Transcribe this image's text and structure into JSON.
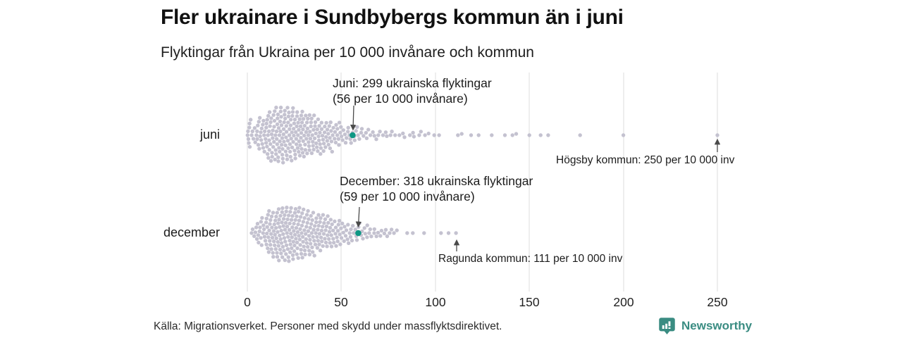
{
  "chart_data": {
    "type": "beeswarm",
    "title": "Fler ukrainare i Sundbybergs kommun än i juni",
    "subtitle": "Flyktingar från Ukraina per 10 000 invånare och kommun",
    "x_ticks": [
      "0",
      "50",
      "100",
      "150",
      "200",
      "250"
    ],
    "xlim": [
      0,
      260
    ],
    "grid": "vertical",
    "dot_color": "#c4c2d0",
    "highlight_color": "#0e9784",
    "rows": [
      {
        "label": "juni",
        "highlight_value": 56,
        "value_buckets": [
          [
            0,
            1.5,
            7
          ],
          [
            1.5,
            5,
            7
          ],
          [
            5,
            10,
            20
          ],
          [
            10,
            15,
            30
          ],
          [
            15,
            20,
            34
          ],
          [
            20,
            25,
            32
          ],
          [
            25,
            30,
            30
          ],
          [
            30,
            35,
            26
          ],
          [
            35,
            40,
            22
          ],
          [
            40,
            45,
            18
          ],
          [
            45,
            50,
            14
          ],
          [
            50,
            55,
            10
          ],
          [
            55,
            60,
            8
          ],
          [
            60,
            65,
            6
          ],
          [
            65,
            70,
            5
          ],
          [
            70,
            75,
            4
          ],
          [
            75,
            80,
            3
          ],
          [
            80,
            85,
            3
          ],
          [
            85,
            90,
            3
          ],
          [
            90,
            95,
            3
          ],
          [
            95,
            100,
            2
          ]
        ],
        "outliers": [
          102,
          112,
          114,
          119,
          123,
          130,
          137,
          141,
          143,
          150,
          156,
          160,
          177,
          200,
          250
        ]
      },
      {
        "label": "december",
        "highlight_value": 59,
        "value_buckets": [
          [
            2,
            5,
            5
          ],
          [
            5,
            10,
            16
          ],
          [
            10,
            15,
            28
          ],
          [
            15,
            20,
            34
          ],
          [
            20,
            25,
            34
          ],
          [
            25,
            30,
            32
          ],
          [
            30,
            35,
            28
          ],
          [
            35,
            40,
            24
          ],
          [
            40,
            45,
            20
          ],
          [
            45,
            50,
            16
          ],
          [
            50,
            55,
            12
          ],
          [
            55,
            60,
            10
          ],
          [
            60,
            65,
            8
          ],
          [
            65,
            70,
            6
          ],
          [
            70,
            75,
            5
          ],
          [
            75,
            80,
            4
          ]
        ],
        "outliers": [
          85,
          88,
          94,
          103,
          107,
          111
        ]
      }
    ],
    "annotations": [
      {
        "id": "juni-highlight",
        "lines": [
          "Juni: 299 ukrainska flyktingar",
          "(56 per 10 000 invånare)"
        ],
        "target_value": 56,
        "target_row": "juni"
      },
      {
        "id": "hogsby",
        "lines": [
          "Högsby kommun: 250 per 10 000 inv"
        ],
        "target_value": 250,
        "target_row": "juni"
      },
      {
        "id": "december-highlight",
        "lines": [
          "December: 318 ukrainska flyktingar",
          "(59 per 10 000 invånare)"
        ],
        "target_value": 59,
        "target_row": "december"
      },
      {
        "id": "ragunda",
        "lines": [
          "Ragunda kommun: 111 per 10 000 inv"
        ],
        "target_value": 111,
        "target_row": "december"
      }
    ]
  },
  "footer": {
    "source": "Källa: Migrationsverket. Personer med skydd under massflyktsdirektivet.",
    "brand": "Newsworthy"
  }
}
